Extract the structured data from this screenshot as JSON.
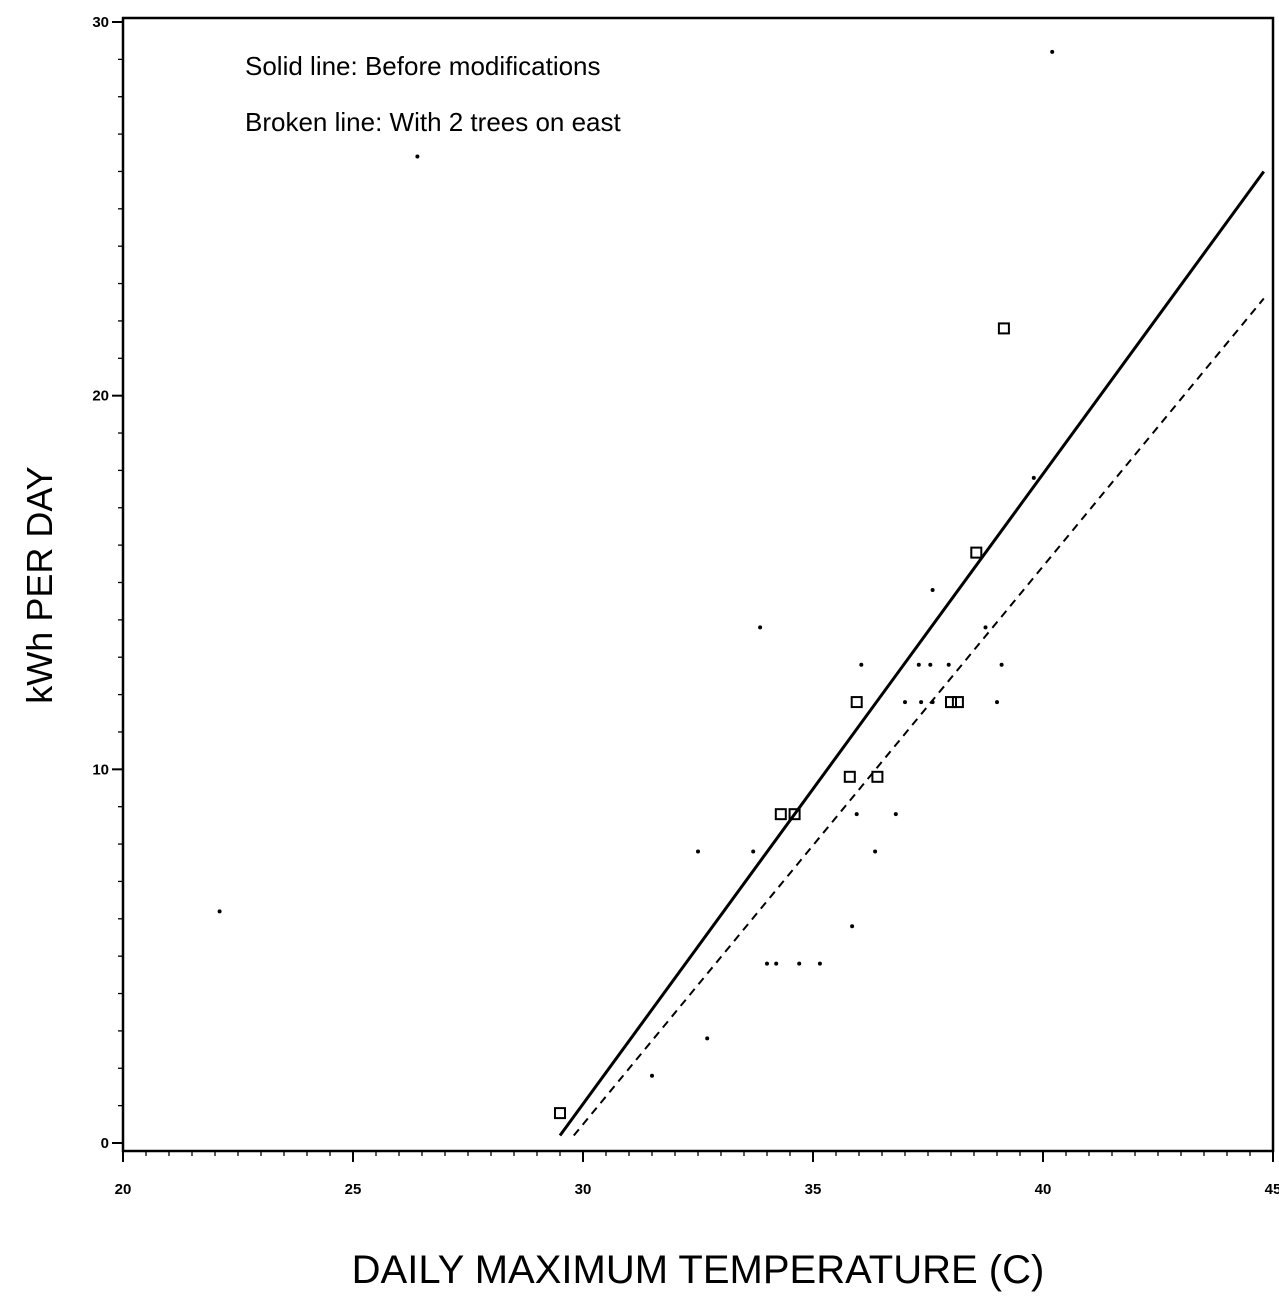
{
  "chart_data": {
    "type": "scatter",
    "title": "",
    "xlabel": "DAILY MAXIMUM TEMPERATURE (C)",
    "ylabel": "kWh PER DAY",
    "xlim": [
      20,
      45
    ],
    "ylim": [
      0,
      30
    ],
    "x_ticks": [
      20,
      25,
      30,
      35,
      40,
      45
    ],
    "y_ticks": [
      0,
      10,
      20,
      30
    ],
    "grid": false,
    "annotations": [
      "Solid line: Before modifications",
      "Broken line: With 2 trees on east"
    ],
    "series": [
      {
        "marker": "open-square",
        "points": [
          [
            29.5,
            0.8
          ],
          [
            34.3,
            8.8
          ],
          [
            34.6,
            8.8
          ],
          [
            35.8,
            9.8
          ],
          [
            35.95,
            11.8
          ],
          [
            36.4,
            9.8
          ],
          [
            38.0,
            11.8
          ],
          [
            38.15,
            11.8
          ],
          [
            38.55,
            15.8
          ],
          [
            39.15,
            21.8
          ]
        ]
      },
      {
        "marker": "dot",
        "points": [
          [
            22.1,
            6.2
          ],
          [
            26.4,
            26.4
          ],
          [
            31.5,
            1.8
          ],
          [
            32.5,
            7.8
          ],
          [
            32.7,
            2.8
          ],
          [
            33.7,
            7.8
          ],
          [
            33.85,
            13.8
          ],
          [
            34.0,
            4.8
          ],
          [
            34.2,
            4.8
          ],
          [
            34.7,
            4.8
          ],
          [
            35.15,
            4.8
          ],
          [
            35.85,
            5.8
          ],
          [
            35.95,
            8.8
          ],
          [
            36.05,
            12.8
          ],
          [
            36.35,
            7.8
          ],
          [
            36.8,
            8.8
          ],
          [
            37.0,
            11.8
          ],
          [
            37.3,
            12.8
          ],
          [
            37.35,
            11.8
          ],
          [
            37.55,
            12.8
          ],
          [
            37.6,
            11.8
          ],
          [
            37.6,
            14.8
          ],
          [
            37.95,
            12.8
          ],
          [
            38.75,
            13.8
          ],
          [
            39.0,
            11.8
          ],
          [
            39.1,
            12.8
          ],
          [
            39.8,
            17.8
          ],
          [
            40.2,
            29.2
          ]
        ]
      },
      {
        "line_style": "solid",
        "points": [
          [
            29.5,
            0.2
          ],
          [
            44.8,
            26.0
          ]
        ]
      },
      {
        "line_style": "dashed",
        "points": [
          [
            29.8,
            0.2
          ],
          [
            44.8,
            22.6
          ]
        ]
      }
    ]
  }
}
